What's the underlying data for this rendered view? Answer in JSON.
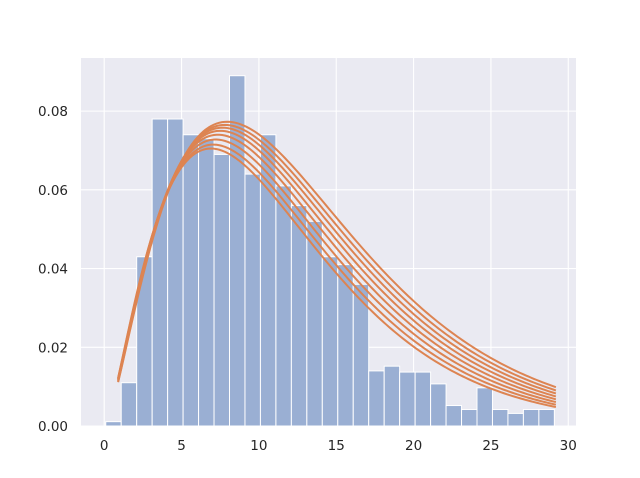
{
  "chart_data": {
    "type": "bar",
    "title": "",
    "xlabel": "",
    "ylabel": "",
    "xlim": [
      -1.5,
      30.5
    ],
    "ylim": [
      0,
      0.0935
    ],
    "grid": true,
    "x_ticks": [
      0,
      5,
      10,
      15,
      20,
      25,
      30
    ],
    "y_ticks": [
      0.0,
      0.02,
      0.04,
      0.06,
      0.08
    ],
    "x_tick_labels": [
      "0",
      "5",
      "10",
      "15",
      "20",
      "25",
      "30"
    ],
    "y_tick_labels": [
      "0.00",
      "0.02",
      "0.04",
      "0.06",
      "0.08"
    ],
    "colors": {
      "background": "#eaeaf2",
      "grid": "#ffffff",
      "bars": "#9aafd3",
      "bar_edge": "#ffffff",
      "curves": "#dd8452"
    },
    "histogram": {
      "bin_start": 0.1,
      "bin_width": 1.0,
      "densities": [
        0.0011,
        0.011,
        0.043,
        0.078,
        0.078,
        0.074,
        0.073,
        0.069,
        0.089,
        0.064,
        0.074,
        0.061,
        0.056,
        0.052,
        0.043,
        0.041,
        0.036,
        0.014,
        0.0152,
        0.0137,
        0.0137,
        0.0107,
        0.0052,
        0.0042,
        0.0097,
        0.0042,
        0.0032,
        0.0042,
        0.0042
      ]
    },
    "fit_curves": {
      "x_range": [
        0.9,
        29.2
      ],
      "shape_k": 2.5,
      "scales": [
        4.6,
        4.7,
        4.8,
        4.9,
        5.0,
        5.1,
        5.2,
        5.3
      ],
      "amplitudes": [
        0.0705,
        0.0715,
        0.0728,
        0.074,
        0.075,
        0.0758,
        0.0765,
        0.0773
      ]
    }
  }
}
